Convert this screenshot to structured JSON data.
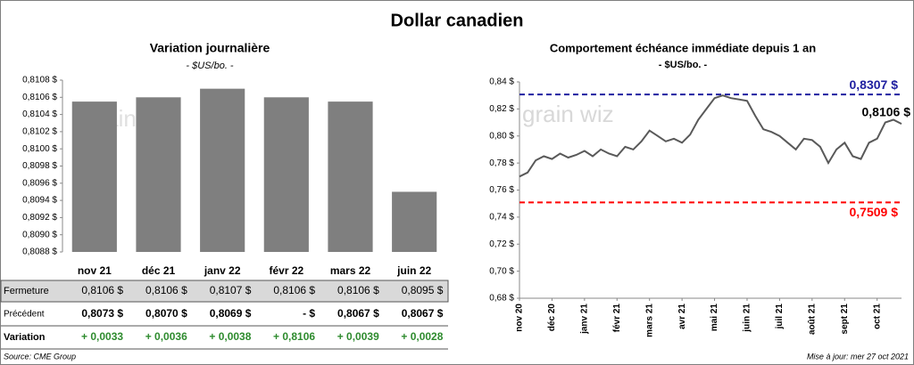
{
  "title": "Dollar canadien",
  "watermark": "grain wiz",
  "chart_data": [
    {
      "type": "bar",
      "title": "Variation  journalière",
      "subtitle": "- $US/bo. -",
      "categories": [
        "nov 21",
        "déc 21",
        "janv 22",
        "févr 22",
        "mars 22",
        "juin 22"
      ],
      "values": [
        0.81055,
        0.8106,
        0.8107,
        0.8106,
        0.81055,
        0.8095
      ],
      "color": "#7f7f7f",
      "ylim": [
        0.8088,
        0.8108
      ],
      "yticks": [
        {
          "value": 0.8088,
          "label": "0,8088 $"
        },
        {
          "value": 0.809,
          "label": "0,8090 $"
        },
        {
          "value": 0.8092,
          "label": "0,8092 $"
        },
        {
          "value": 0.8094,
          "label": "0,8094 $"
        },
        {
          "value": 0.8096,
          "label": "0,8096 $"
        },
        {
          "value": 0.8098,
          "label": "0,8098 $"
        },
        {
          "value": 0.81,
          "label": "0,8100 $"
        },
        {
          "value": 0.8102,
          "label": "0,8102 $"
        },
        {
          "value": 0.8104,
          "label": "0,8104 $"
        },
        {
          "value": 0.8106,
          "label": "0,8106 $"
        },
        {
          "value": 0.8108,
          "label": "0,8108 $"
        }
      ]
    },
    {
      "type": "line",
      "title": "Comportement échéance immédiate depuis 1 an",
      "subtitle": "- $US/bo. -",
      "color": "#595959",
      "values": [
        0.77,
        0.773,
        0.782,
        0.785,
        0.783,
        0.787,
        0.784,
        0.786,
        0.789,
        0.785,
        0.79,
        0.787,
        0.785,
        0.792,
        0.79,
        0.796,
        0.804,
        0.8,
        0.796,
        0.798,
        0.795,
        0.801,
        0.812,
        0.82,
        0.828,
        0.83,
        0.828,
        0.827,
        0.826,
        0.815,
        0.805,
        0.803,
        0.8,
        0.795,
        0.79,
        0.798,
        0.797,
        0.792,
        0.78,
        0.79,
        0.795,
        0.785,
        0.783,
        0.795,
        0.798,
        0.81,
        0.812,
        0.809
      ],
      "xlim": [
        0,
        47
      ],
      "xticks": [
        {
          "value": 0,
          "label": "nov 20"
        },
        {
          "value": 4,
          "label": "déc 20"
        },
        {
          "value": 8,
          "label": "janv 21"
        },
        {
          "value": 12,
          "label": "févr 21"
        },
        {
          "value": 16,
          "label": "mars 21"
        },
        {
          "value": 20,
          "label": "avr 21"
        },
        {
          "value": 24,
          "label": "mai 21"
        },
        {
          "value": 28,
          "label": "juin 21"
        },
        {
          "value": 32,
          "label": "juil 21"
        },
        {
          "value": 36,
          "label": "août 21"
        },
        {
          "value": 40,
          "label": "sept 21"
        },
        {
          "value": 44,
          "label": "oct 21"
        }
      ],
      "ylim": [
        0.68,
        0.84
      ],
      "yticks": [
        {
          "value": 0.68,
          "label": "0,68 $"
        },
        {
          "value": 0.7,
          "label": "0,70 $"
        },
        {
          "value": 0.72,
          "label": "0,72 $"
        },
        {
          "value": 0.74,
          "label": "0,74 $"
        },
        {
          "value": 0.76,
          "label": "0,76 $"
        },
        {
          "value": 0.78,
          "label": "0,78 $"
        },
        {
          "value": 0.8,
          "label": "0,80 $"
        },
        {
          "value": 0.82,
          "label": "0,82 $"
        },
        {
          "value": 0.84,
          "label": "0,84 $"
        }
      ],
      "annotations": [
        {
          "value": 0.8307,
          "label": "0,8307 $",
          "color": "#1f1fa0",
          "line": true
        },
        {
          "value": 0.7509,
          "label": "0,7509 $",
          "color": "#ff0000",
          "line": true
        },
        {
          "value": 0.8106,
          "label": "0,8106 $",
          "color": "#000000",
          "line": false
        }
      ]
    }
  ],
  "table": {
    "rows": [
      {
        "label": "Fermeture",
        "cells": [
          "0,8106 $",
          "0,8106 $",
          "0,8107 $",
          "0,8106 $",
          "0,8106 $",
          "0,8095 $"
        ]
      },
      {
        "label": "Précédent",
        "cells": [
          "0,8073 $",
          "0,8070 $",
          "0,8069 $",
          "- $",
          "0,8067 $",
          "0,8067 $"
        ]
      },
      {
        "label": "Variation",
        "cells": [
          "+ 0,0033",
          "+ 0,0036",
          "+ 0,0038",
          "+ 0,8106",
          "+ 0,0039",
          "+ 0,0028"
        ]
      }
    ]
  },
  "source": "Source: CME Group",
  "updated": "Mise à jour: mer 27 oct 2021"
}
